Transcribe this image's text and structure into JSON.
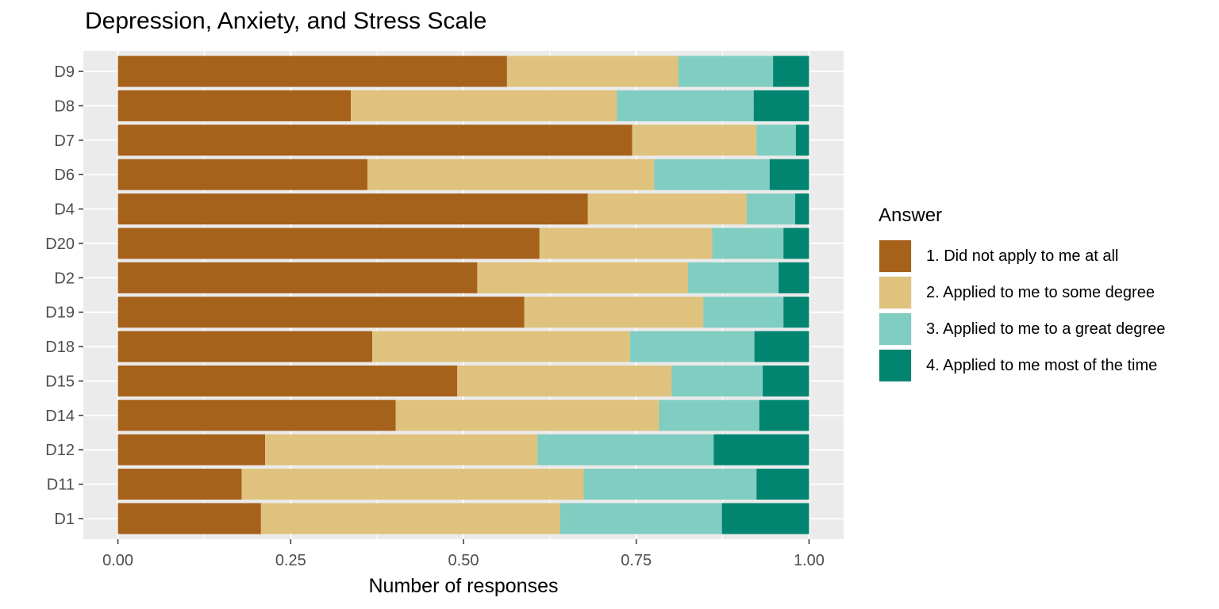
{
  "chart_data": {
    "type": "bar",
    "orientation": "horizontal",
    "stacked": true,
    "title": "Depression, Anxiety, and Stress Scale",
    "xlabel": "Number of responses",
    "ylabel": "",
    "xlim": [
      0,
      1
    ],
    "x_ticks": [
      "0.00",
      "0.25",
      "0.50",
      "0.75",
      "1.00"
    ],
    "x_tick_values": [
      0,
      0.25,
      0.5,
      0.75,
      1.0
    ],
    "grid": true,
    "legend_position": "right",
    "legend_title": "Answer",
    "categories": [
      "D1",
      "D11",
      "D12",
      "D14",
      "D15",
      "D18",
      "D19",
      "D2",
      "D20",
      "D4",
      "D6",
      "D7",
      "D8",
      "D9"
    ],
    "series": [
      {
        "name": "1. Did not apply to me at all",
        "color": "#a6611a",
        "values": [
          0.207,
          0.179,
          0.213,
          0.402,
          0.491,
          0.368,
          0.588,
          0.52,
          0.61,
          0.68,
          0.361,
          0.744,
          0.337,
          0.563
        ]
      },
      {
        "name": "2. Applied to me to some degree",
        "color": "#dfc27d",
        "values": [
          0.433,
          0.495,
          0.394,
          0.381,
          0.31,
          0.373,
          0.259,
          0.305,
          0.25,
          0.23,
          0.415,
          0.18,
          0.385,
          0.248
        ]
      },
      {
        "name": "3. Applied to me to a great degree",
        "color": "#80cdc1",
        "values": [
          0.234,
          0.25,
          0.255,
          0.145,
          0.132,
          0.18,
          0.116,
          0.131,
          0.103,
          0.07,
          0.167,
          0.057,
          0.198,
          0.137
        ]
      },
      {
        "name": "4. Applied to me most of the time",
        "color": "#018571",
        "values": [
          0.126,
          0.076,
          0.138,
          0.072,
          0.067,
          0.079,
          0.037,
          0.044,
          0.037,
          0.02,
          0.057,
          0.019,
          0.08,
          0.052
        ]
      }
    ]
  }
}
